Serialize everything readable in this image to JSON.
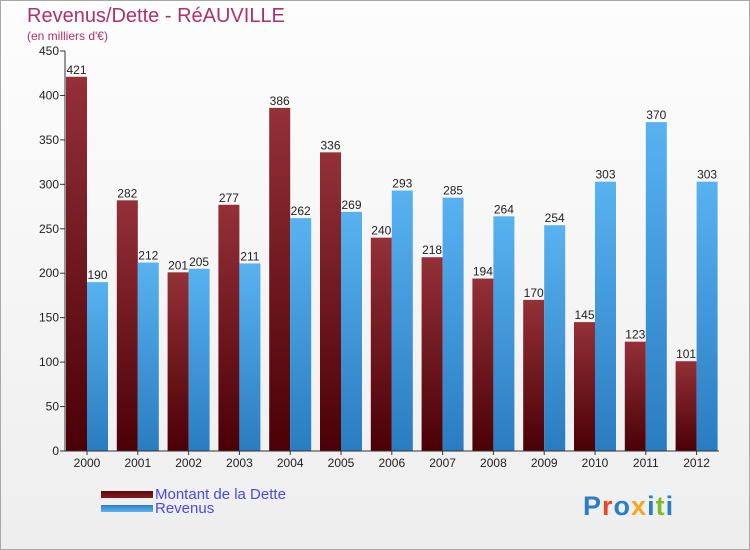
{
  "title": "Revenus/Dette - RéAUVILLE",
  "subtitle": "(en milliers d'€)",
  "logo": {
    "letters": [
      "P",
      "r",
      "o",
      "x",
      "i",
      "t",
      "i"
    ],
    "colors": [
      "#2c7ec4",
      "#e8472a",
      "#2c7ec4",
      "#f5a623",
      "#2c7ec4",
      "#7cbb2a",
      "#2c7ec4"
    ]
  },
  "colors": {
    "debt": "#8a1a20",
    "revenue": "#4aa3e8",
    "title": "#b0306a",
    "legend_text": "#4a4ae0"
  },
  "chart_data": {
    "type": "bar",
    "categories": [
      "2000",
      "2001",
      "2002",
      "2003",
      "2004",
      "2005",
      "2006",
      "2007",
      "2008",
      "2009",
      "2010",
      "2011",
      "2012"
    ],
    "series": [
      {
        "name": "Montant de la Dette",
        "values": [
          421,
          282,
          201,
          277,
          386,
          336,
          240,
          218,
          194,
          170,
          145,
          123,
          101
        ]
      },
      {
        "name": "Revenus",
        "values": [
          190,
          212,
          205,
          211,
          262,
          269,
          293,
          285,
          264,
          254,
          303,
          370,
          303
        ]
      }
    ],
    "ylim": [
      0,
      450
    ],
    "yticks": [
      0,
      50,
      100,
      150,
      200,
      250,
      300,
      350,
      400,
      450
    ],
    "grid": false,
    "legend": "bottom-left"
  }
}
